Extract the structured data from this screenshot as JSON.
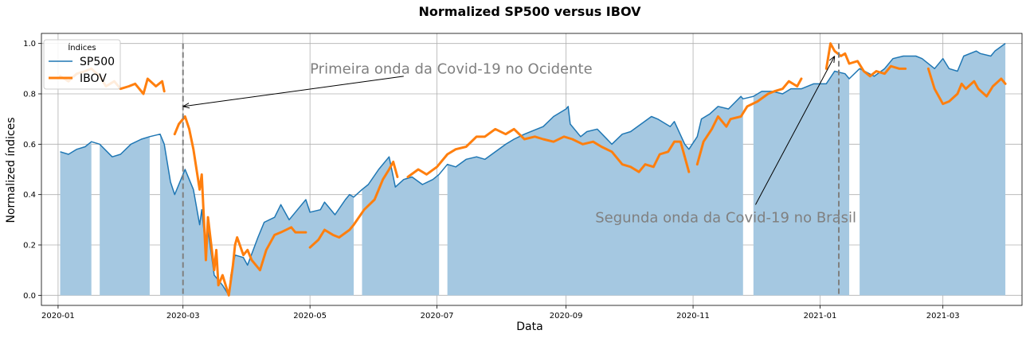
{
  "chart_data": {
    "type": "line",
    "title": "Normalized SP500 versus IBOV",
    "xlabel": "Data",
    "ylabel": "Normalized índices",
    "x_range": [
      "2019-12-24",
      "2021-04-08"
    ],
    "ylim": [
      -0.04,
      1.04
    ],
    "x_ticks": [
      "2020-01",
      "2020-03",
      "2020-05",
      "2020-07",
      "2020-09",
      "2020-11",
      "2021-01",
      "2021-03"
    ],
    "y_ticks": [
      "0.0",
      "0.2",
      "0.4",
      "0.6",
      "0.8",
      "1.0"
    ],
    "grid": true,
    "legend": {
      "title": "Índices",
      "placement": "top-left"
    },
    "colors": {
      "sp500": "#1f77b4",
      "ibov": "#ff7f0e",
      "fill": "#a5c8e1",
      "vline": "#808080"
    },
    "series": [
      {
        "name": "SP500",
        "fill_area": true,
        "points": [
          [
            "2020-01-02",
            0.57
          ],
          [
            "2020-01-06",
            0.56
          ],
          [
            "2020-01-10",
            0.58
          ],
          [
            "2020-01-14",
            0.59
          ],
          [
            "2020-01-17",
            0.61
          ],
          [
            "2020-01-21",
            0.6
          ],
          [
            "2020-01-27",
            0.55
          ],
          [
            "2020-01-31",
            0.56
          ],
          [
            "2020-02-05",
            0.6
          ],
          [
            "2020-02-10",
            0.62
          ],
          [
            "2020-02-14",
            0.63
          ],
          [
            "2020-02-19",
            0.64
          ],
          [
            "2020-02-21",
            0.6
          ],
          [
            "2020-02-24",
            0.45
          ],
          [
            "2020-02-26",
            0.4
          ],
          [
            "2020-02-28",
            0.44
          ],
          [
            "2020-03-02",
            0.5
          ],
          [
            "2020-03-04",
            0.46
          ],
          [
            "2020-03-06",
            0.42
          ],
          [
            "2020-03-09",
            0.28
          ],
          [
            "2020-03-10",
            0.34
          ],
          [
            "2020-03-12",
            0.18
          ],
          [
            "2020-03-13",
            0.26
          ],
          [
            "2020-03-16",
            0.08
          ],
          [
            "2020-03-18",
            0.06
          ],
          [
            "2020-03-20",
            0.04
          ],
          [
            "2020-03-23",
            0.0
          ],
          [
            "2020-03-24",
            0.08
          ],
          [
            "2020-03-26",
            0.16
          ],
          [
            "2020-03-30",
            0.15
          ],
          [
            "2020-04-01",
            0.12
          ],
          [
            "2020-04-06",
            0.23
          ],
          [
            "2020-04-09",
            0.29
          ],
          [
            "2020-04-14",
            0.31
          ],
          [
            "2020-04-17",
            0.36
          ],
          [
            "2020-04-21",
            0.3
          ],
          [
            "2020-04-24",
            0.33
          ],
          [
            "2020-04-29",
            0.38
          ],
          [
            "2020-05-01",
            0.33
          ],
          [
            "2020-05-06",
            0.34
          ],
          [
            "2020-05-08",
            0.37
          ],
          [
            "2020-05-13",
            0.32
          ],
          [
            "2020-05-18",
            0.38
          ],
          [
            "2020-05-20",
            0.4
          ],
          [
            "2020-05-22",
            0.39
          ],
          [
            "2020-05-26",
            0.42
          ],
          [
            "2020-05-29",
            0.44
          ],
          [
            "2020-06-03",
            0.5
          ],
          [
            "2020-06-08",
            0.55
          ],
          [
            "2020-06-11",
            0.43
          ],
          [
            "2020-06-15",
            0.46
          ],
          [
            "2020-06-19",
            0.47
          ],
          [
            "2020-06-24",
            0.44
          ],
          [
            "2020-06-29",
            0.46
          ],
          [
            "2020-07-02",
            0.48
          ],
          [
            "2020-07-06",
            0.52
          ],
          [
            "2020-07-10",
            0.51
          ],
          [
            "2020-07-15",
            0.54
          ],
          [
            "2020-07-20",
            0.55
          ],
          [
            "2020-07-24",
            0.54
          ],
          [
            "2020-07-29",
            0.57
          ],
          [
            "2020-08-03",
            0.6
          ],
          [
            "2020-08-07",
            0.62
          ],
          [
            "2020-08-12",
            0.64
          ],
          [
            "2020-08-18",
            0.66
          ],
          [
            "2020-08-21",
            0.67
          ],
          [
            "2020-08-26",
            0.71
          ],
          [
            "2020-09-01",
            0.74
          ],
          [
            "2020-09-02",
            0.75
          ],
          [
            "2020-09-03",
            0.68
          ],
          [
            "2020-09-08",
            0.63
          ],
          [
            "2020-09-11",
            0.65
          ],
          [
            "2020-09-16",
            0.66
          ],
          [
            "2020-09-23",
            0.6
          ],
          [
            "2020-09-28",
            0.64
          ],
          [
            "2020-10-02",
            0.65
          ],
          [
            "2020-10-07",
            0.68
          ],
          [
            "2020-10-12",
            0.71
          ],
          [
            "2020-10-15",
            0.7
          ],
          [
            "2020-10-21",
            0.67
          ],
          [
            "2020-10-23",
            0.69
          ],
          [
            "2020-10-28",
            0.6
          ],
          [
            "2020-10-30",
            0.58
          ],
          [
            "2020-11-03",
            0.63
          ],
          [
            "2020-11-05",
            0.7
          ],
          [
            "2020-11-09",
            0.72
          ],
          [
            "2020-11-13",
            0.75
          ],
          [
            "2020-11-18",
            0.74
          ],
          [
            "2020-11-24",
            0.79
          ],
          [
            "2020-11-25",
            0.78
          ],
          [
            "2020-11-30",
            0.79
          ],
          [
            "2020-12-04",
            0.81
          ],
          [
            "2020-12-09",
            0.81
          ],
          [
            "2020-12-14",
            0.8
          ],
          [
            "2020-12-18",
            0.82
          ],
          [
            "2020-12-23",
            0.82
          ],
          [
            "2020-12-29",
            0.84
          ],
          [
            "2021-01-04",
            0.84
          ],
          [
            "2021-01-08",
            0.89
          ],
          [
            "2021-01-13",
            0.88
          ],
          [
            "2021-01-15",
            0.86
          ],
          [
            "2021-01-20",
            0.9
          ],
          [
            "2021-01-27",
            0.87
          ],
          [
            "2021-02-01",
            0.9
          ],
          [
            "2021-02-05",
            0.94
          ],
          [
            "2021-02-10",
            0.95
          ],
          [
            "2021-02-16",
            0.95
          ],
          [
            "2021-02-19",
            0.94
          ],
          [
            "2021-02-25",
            0.9
          ],
          [
            "2021-03-01",
            0.94
          ],
          [
            "2021-03-04",
            0.9
          ],
          [
            "2021-03-08",
            0.89
          ],
          [
            "2021-03-11",
            0.95
          ],
          [
            "2021-03-17",
            0.97
          ],
          [
            "2021-03-19",
            0.96
          ],
          [
            "2021-03-24",
            0.95
          ],
          [
            "2021-03-26",
            0.97
          ],
          [
            "2021-03-31",
            1.0
          ]
        ],
        "gaps": [
          [
            "2020-01-17",
            "2020-01-21"
          ],
          [
            "2020-02-14",
            "2020-02-19"
          ],
          [
            "2020-05-22",
            "2020-05-26"
          ],
          [
            "2020-07-02",
            "2020-07-06"
          ],
          [
            "2020-11-25",
            "2020-11-30"
          ],
          [
            "2021-01-15",
            "2021-01-20"
          ]
        ]
      },
      {
        "name": "IBOV",
        "points": [
          [
            "2020-01-02",
            0.87
          ],
          [
            "2020-01-06",
            0.85
          ],
          [
            "2020-01-10",
            0.88
          ],
          [
            "2020-01-14",
            0.89
          ],
          [
            "2020-01-17",
            0.9
          ],
          [
            "2020-01-21",
            0.87
          ],
          [
            "2020-01-24",
            0.83
          ],
          [
            "2020-01-28",
            0.85
          ],
          [
            "2020-01-31",
            0.82
          ],
          [
            "2020-02-04",
            0.83
          ],
          [
            "2020-02-07",
            0.84
          ],
          [
            "2020-02-11",
            0.8
          ],
          [
            "2020-02-13",
            0.86
          ],
          [
            "2020-02-17",
            0.83
          ],
          [
            "2020-02-20",
            0.85
          ],
          [
            "2020-02-21",
            0.81
          ],
          null,
          [
            "2020-02-26",
            0.64
          ],
          [
            "2020-02-28",
            0.68
          ],
          [
            "2020-03-02",
            0.71
          ],
          [
            "2020-03-04",
            0.66
          ],
          [
            "2020-03-06",
            0.58
          ],
          [
            "2020-03-09",
            0.42
          ],
          [
            "2020-03-10",
            0.48
          ],
          [
            "2020-03-12",
            0.14
          ],
          [
            "2020-03-13",
            0.31
          ],
          [
            "2020-03-16",
            0.1
          ],
          [
            "2020-03-17",
            0.18
          ],
          [
            "2020-03-18",
            0.04
          ],
          [
            "2020-03-20",
            0.08
          ],
          [
            "2020-03-23",
            0.0
          ],
          [
            "2020-03-25",
            0.12
          ],
          [
            "2020-03-26",
            0.2
          ],
          [
            "2020-03-27",
            0.23
          ],
          [
            "2020-03-30",
            0.16
          ],
          [
            "2020-04-01",
            0.18
          ],
          [
            "2020-04-03",
            0.14
          ],
          [
            "2020-04-07",
            0.1
          ],
          [
            "2020-04-10",
            0.18
          ],
          [
            "2020-04-14",
            0.24
          ],
          [
            "2020-04-17",
            0.25
          ],
          [
            "2020-04-22",
            0.27
          ],
          [
            "2020-04-24",
            0.25
          ],
          [
            "2020-04-29",
            0.25
          ],
          null,
          [
            "2020-05-01",
            0.19
          ],
          [
            "2020-05-05",
            0.22
          ],
          [
            "2020-05-08",
            0.26
          ],
          [
            "2020-05-12",
            0.24
          ],
          [
            "2020-05-15",
            0.23
          ],
          [
            "2020-05-20",
            0.26
          ],
          [
            "2020-05-22",
            0.28
          ],
          [
            "2020-05-27",
            0.34
          ],
          [
            "2020-06-01",
            0.38
          ],
          [
            "2020-06-05",
            0.46
          ],
          [
            "2020-06-08",
            0.5
          ],
          [
            "2020-06-10",
            0.53
          ],
          [
            "2020-06-12",
            0.47
          ],
          null,
          [
            "2020-06-17",
            0.47
          ],
          [
            "2020-06-22",
            0.5
          ],
          [
            "2020-06-26",
            0.48
          ],
          [
            "2020-07-01",
            0.51
          ],
          [
            "2020-07-06",
            0.56
          ],
          [
            "2020-07-10",
            0.58
          ],
          [
            "2020-07-15",
            0.59
          ],
          [
            "2020-07-20",
            0.63
          ],
          [
            "2020-07-24",
            0.63
          ],
          [
            "2020-07-29",
            0.66
          ],
          [
            "2020-08-03",
            0.64
          ],
          [
            "2020-08-07",
            0.66
          ],
          [
            "2020-08-12",
            0.62
          ],
          [
            "2020-08-17",
            0.63
          ],
          [
            "2020-08-21",
            0.62
          ],
          [
            "2020-08-26",
            0.61
          ],
          [
            "2020-08-31",
            0.63
          ],
          [
            "2020-09-04",
            0.62
          ],
          [
            "2020-09-09",
            0.6
          ],
          [
            "2020-09-14",
            0.61
          ],
          [
            "2020-09-18",
            0.59
          ],
          [
            "2020-09-23",
            0.57
          ],
          [
            "2020-09-28",
            0.52
          ],
          [
            "2020-10-02",
            0.51
          ],
          [
            "2020-10-06",
            0.49
          ],
          [
            "2020-10-09",
            0.52
          ],
          [
            "2020-10-13",
            0.51
          ],
          [
            "2020-10-16",
            0.56
          ],
          [
            "2020-10-20",
            0.57
          ],
          [
            "2020-10-23",
            0.61
          ],
          [
            "2020-10-26",
            0.61
          ],
          [
            "2020-10-28",
            0.55
          ],
          [
            "2020-10-30",
            0.49
          ],
          null,
          [
            "2020-11-03",
            0.52
          ],
          [
            "2020-11-06",
            0.61
          ],
          [
            "2020-11-10",
            0.66
          ],
          [
            "2020-11-13",
            0.71
          ],
          [
            "2020-11-17",
            0.67
          ],
          [
            "2020-11-19",
            0.7
          ],
          [
            "2020-11-24",
            0.71
          ],
          [
            "2020-11-27",
            0.75
          ],
          [
            "2020-12-02",
            0.77
          ],
          [
            "2020-12-07",
            0.8
          ],
          [
            "2020-12-10",
            0.81
          ],
          [
            "2020-12-14",
            0.82
          ],
          [
            "2020-12-17",
            0.85
          ],
          [
            "2020-12-21",
            0.83
          ],
          [
            "2020-12-23",
            0.86
          ],
          null,
          [
            "2021-01-04",
            0.9
          ],
          [
            "2021-01-06",
            1.0
          ],
          [
            "2021-01-08",
            0.97
          ],
          [
            "2021-01-11",
            0.95
          ],
          [
            "2021-01-13",
            0.96
          ],
          [
            "2021-01-15",
            0.92
          ],
          [
            "2021-01-19",
            0.93
          ],
          [
            "2021-01-22",
            0.89
          ],
          [
            "2021-01-25",
            0.87
          ],
          [
            "2021-01-28",
            0.89
          ],
          [
            "2021-02-01",
            0.88
          ],
          [
            "2021-02-04",
            0.91
          ],
          [
            "2021-02-08",
            0.9
          ],
          [
            "2021-02-11",
            0.9
          ],
          null,
          [
            "2021-02-22",
            0.9
          ],
          [
            "2021-02-25",
            0.82
          ],
          [
            "2021-03-01",
            0.76
          ],
          [
            "2021-03-04",
            0.77
          ],
          [
            "2021-03-08",
            0.8
          ],
          [
            "2021-03-10",
            0.84
          ],
          [
            "2021-03-12",
            0.82
          ],
          [
            "2021-03-16",
            0.85
          ],
          [
            "2021-03-18",
            0.82
          ],
          [
            "2021-03-22",
            0.79
          ],
          [
            "2021-03-25",
            0.83
          ],
          [
            "2021-03-29",
            0.86
          ],
          [
            "2021-03-31",
            0.84
          ]
        ]
      }
    ],
    "vlines": [
      "2020-03-01",
      "2021-01-10"
    ],
    "annotations": [
      {
        "text": "Primeira onda da Covid-19 no Ocidente",
        "text_at": [
          "2020-05-01",
          0.88
        ],
        "arrow_from": [
          "2020-06-15",
          0.87
        ],
        "arrow_to": [
          "2020-03-01",
          0.75
        ]
      },
      {
        "text": "Segunda onda da Covid-19 no Brasil",
        "text_at": [
          "2020-09-15",
          0.29
        ],
        "arrow_from": [
          "2020-12-01",
          0.36
        ],
        "arrow_to": [
          "2021-01-08",
          0.95
        ]
      }
    ]
  }
}
